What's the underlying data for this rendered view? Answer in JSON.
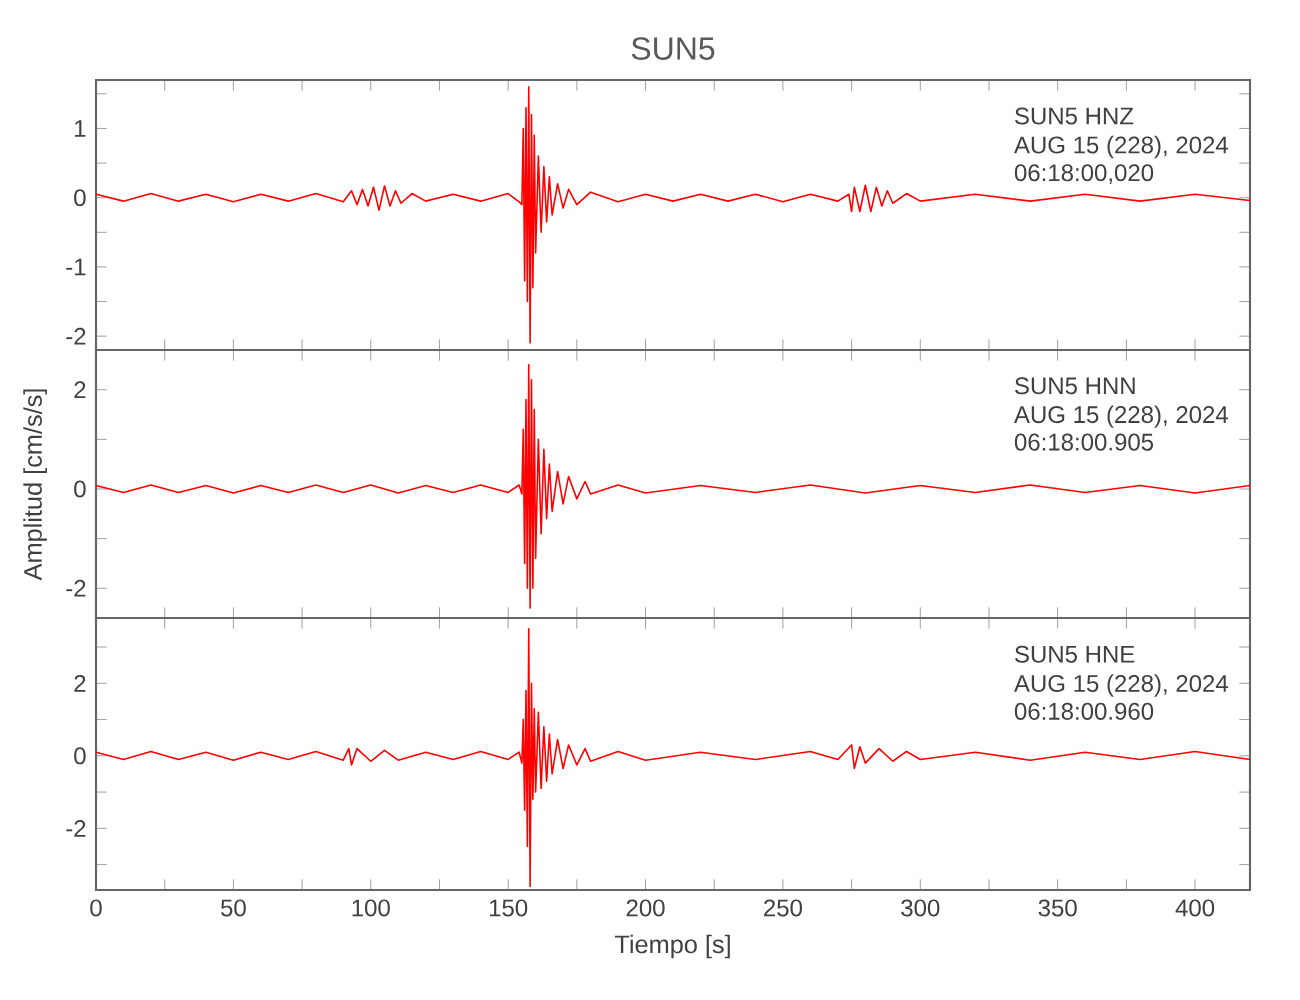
{
  "chart_data": [
    {
      "type": "line",
      "title": "SUN5",
      "color": "#ff0000",
      "xlim": [
        0,
        420
      ],
      "ylim": [
        -2.2,
        1.7
      ],
      "tick_labels": "y",
      "xticks": [
        0,
        {
          "value": 25,
          "label": null
        },
        50,
        {
          "value": 75,
          "label": null
        },
        100,
        {
          "value": 125,
          "label": null
        },
        150,
        {
          "value": 175,
          "label": null
        },
        200,
        {
          "value": 225,
          "label": null
        },
        250,
        {
          "value": 275,
          "label": null
        },
        300,
        {
          "value": 325,
          "label": null
        },
        350,
        {
          "value": 375,
          "label": null
        },
        400
      ],
      "yticks": [
        -2,
        {
          "value": -1.5,
          "label": null
        },
        -1,
        {
          "value": -0.5,
          "label": null
        },
        0,
        {
          "value": 0.5,
          "label": null
        },
        1,
        {
          "value": 1.5,
          "label": null
        }
      ],
      "annotations": [
        "SUN5   HNZ",
        "AUG 15 (228), 2024",
        "06:18:00,020"
      ],
      "x": [
        0,
        10,
        20,
        30,
        40,
        50,
        60,
        70,
        80,
        90,
        93,
        95,
        97,
        99,
        101,
        103,
        105,
        107,
        109,
        111,
        115,
        120,
        130,
        140,
        150,
        154,
        155,
        155.5,
        156,
        156.5,
        157,
        157.5,
        158,
        158.5,
        159,
        159.5,
        160,
        161,
        162,
        163,
        164,
        165,
        166,
        168,
        170,
        172,
        175,
        180,
        190,
        200,
        210,
        220,
        230,
        240,
        250,
        260,
        270,
        274,
        275,
        276,
        278,
        280,
        282,
        284,
        286,
        288,
        290,
        295,
        300,
        320,
        340,
        360,
        380,
        400,
        420
      ],
      "values": [
        0.05,
        -0.05,
        0.06,
        -0.05,
        0.05,
        -0.06,
        0.05,
        -0.05,
        0.06,
        -0.06,
        0.1,
        -0.1,
        0.12,
        -0.12,
        0.15,
        -0.18,
        0.17,
        -0.12,
        0.1,
        -0.08,
        0.06,
        -0.05,
        0.05,
        -0.05,
        0.06,
        -0.06,
        -0.1,
        1.0,
        -1.2,
        1.3,
        -1.5,
        1.6,
        -2.1,
        1.2,
        -1.3,
        0.9,
        -0.8,
        0.6,
        -0.5,
        0.45,
        -0.35,
        0.3,
        -0.25,
        0.2,
        -0.15,
        0.12,
        -0.1,
        0.08,
        -0.06,
        0.05,
        -0.05,
        0.05,
        -0.05,
        0.05,
        -0.06,
        0.05,
        -0.05,
        0.05,
        -0.2,
        0.15,
        -0.2,
        0.18,
        -0.2,
        0.15,
        -0.12,
        0.1,
        -0.08,
        0.06,
        -0.05,
        0.05,
        -0.05,
        0.05,
        -0.05,
        0.05,
        -0.04
      ]
    },
    {
      "type": "line",
      "ylabel": "Amplitud [cm/s/s]",
      "color": "#ff0000",
      "xlim": [
        0,
        420
      ],
      "ylim": [
        -2.6,
        2.8
      ],
      "tick_labels": "y",
      "xticks": [
        0,
        {
          "value": 25,
          "label": null
        },
        50,
        {
          "value": 75,
          "label": null
        },
        100,
        {
          "value": 125,
          "label": null
        },
        150,
        {
          "value": 175,
          "label": null
        },
        200,
        {
          "value": 225,
          "label": null
        },
        250,
        {
          "value": 275,
          "label": null
        },
        300,
        {
          "value": 325,
          "label": null
        },
        350,
        {
          "value": 375,
          "label": null
        },
        400
      ],
      "yticks": [
        -2,
        {
          "value": -1,
          "label": null
        },
        0,
        {
          "value": 1,
          "label": null
        },
        2
      ],
      "annotations": [
        "SUN5   HNN",
        "AUG 15 (228), 2024",
        "06:18:00.905"
      ],
      "x": [
        0,
        10,
        20,
        30,
        40,
        50,
        60,
        70,
        80,
        90,
        100,
        110,
        120,
        130,
        140,
        150,
        154,
        155,
        155.5,
        156,
        156.5,
        157,
        157.5,
        158,
        158.5,
        159,
        159.5,
        160,
        161,
        162,
        163,
        164,
        165,
        166,
        168,
        170,
        172,
        175,
        178,
        180,
        190,
        200,
        220,
        240,
        260,
        280,
        300,
        320,
        340,
        360,
        380,
        400,
        420
      ],
      "values": [
        0.07,
        -0.07,
        0.08,
        -0.07,
        0.07,
        -0.08,
        0.07,
        -0.07,
        0.08,
        -0.07,
        0.08,
        -0.08,
        0.07,
        -0.07,
        0.08,
        -0.07,
        0.08,
        -0.1,
        1.2,
        -1.5,
        1.8,
        -2.0,
        2.5,
        -2.4,
        2.2,
        -2.0,
        1.6,
        -1.4,
        1.0,
        -0.9,
        0.8,
        -0.6,
        0.5,
        -0.45,
        0.35,
        -0.3,
        0.25,
        -0.2,
        0.15,
        -0.1,
        0.08,
        -0.08,
        0.07,
        -0.07,
        0.08,
        -0.08,
        0.07,
        -0.07,
        0.08,
        -0.07,
        0.07,
        -0.08,
        0.07
      ]
    },
    {
      "type": "line",
      "xlabel": "Tiempo [s]",
      "color": "#ff0000",
      "xlim": [
        0,
        420
      ],
      "ylim": [
        -3.7,
        3.8
      ],
      "xticks": [
        0,
        {
          "value": 25,
          "label": null
        },
        50,
        {
          "value": 75,
          "label": null
        },
        100,
        {
          "value": 125,
          "label": null
        },
        150,
        {
          "value": 175,
          "label": null
        },
        200,
        {
          "value": 225,
          "label": null
        },
        250,
        {
          "value": 275,
          "label": null
        },
        300,
        {
          "value": 325,
          "label": null
        },
        350,
        {
          "value": 375,
          "label": null
        },
        400
      ],
      "yticks": [
        {
          "value": -3,
          "label": null
        },
        -2,
        {
          "value": -1,
          "label": null
        },
        0,
        {
          "value": 1,
          "label": null
        },
        2,
        {
          "value": 3,
          "label": null
        }
      ],
      "annotations": [
        "SUN5   HNE",
        "AUG 15 (228), 2024",
        "06:18:00.960"
      ],
      "x": [
        0,
        10,
        20,
        30,
        40,
        50,
        60,
        70,
        80,
        90,
        92,
        93,
        95,
        100,
        105,
        110,
        120,
        130,
        140,
        150,
        154,
        155,
        155.5,
        156,
        156.5,
        157,
        157.5,
        158,
        158.5,
        159,
        159.5,
        160,
        161,
        162,
        163,
        164,
        165,
        166,
        168,
        170,
        172,
        175,
        178,
        180,
        190,
        200,
        220,
        240,
        260,
        270,
        275,
        276,
        278,
        280,
        285,
        290,
        295,
        300,
        320,
        340,
        360,
        380,
        400,
        420
      ],
      "values": [
        0.1,
        -0.1,
        0.12,
        -0.1,
        0.1,
        -0.12,
        0.1,
        -0.1,
        0.12,
        -0.12,
        0.2,
        -0.25,
        0.2,
        -0.15,
        0.15,
        -0.12,
        0.1,
        -0.1,
        0.12,
        -0.1,
        0.1,
        -0.2,
        1.0,
        -1.5,
        1.8,
        -2.5,
        3.5,
        -3.6,
        2.0,
        -1.2,
        1.3,
        -1.0,
        1.2,
        -0.9,
        0.8,
        -0.7,
        0.6,
        -0.5,
        0.45,
        -0.35,
        0.3,
        -0.25,
        0.2,
        -0.15,
        0.12,
        -0.12,
        0.1,
        -0.1,
        0.12,
        -0.1,
        0.3,
        -0.35,
        0.25,
        -0.2,
        0.2,
        -0.15,
        0.12,
        -0.1,
        0.1,
        -0.12,
        0.1,
        -0.1,
        0.12,
        -0.1
      ]
    }
  ]
}
